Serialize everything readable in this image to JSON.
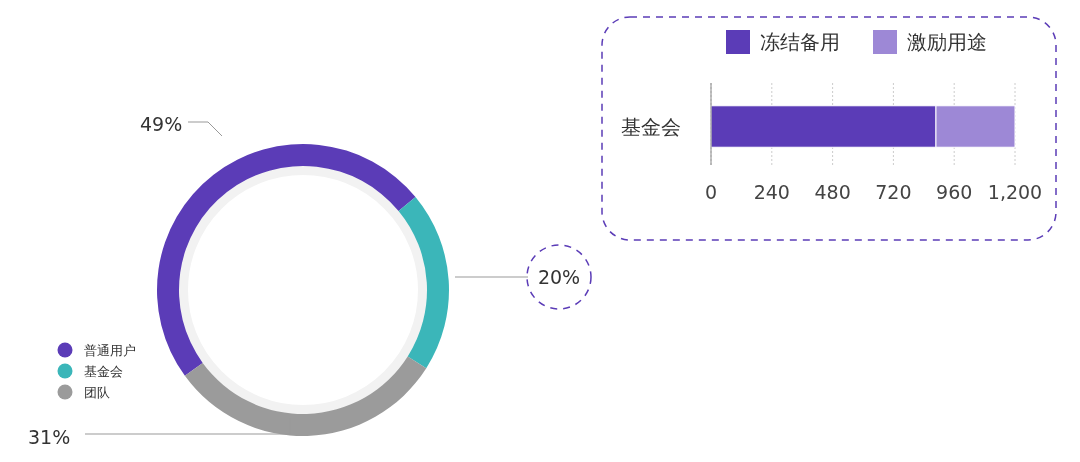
{
  "chart_data": [
    {
      "type": "donut",
      "categories": [
        "普通用户",
        "基金会",
        "团队"
      ],
      "values": [
        49,
        20,
        31
      ],
      "colors": [
        "#5b3cb7",
        "#3bb6b9",
        "#9b9b9b"
      ],
      "value_labels": [
        "49%",
        "20%",
        "31%"
      ],
      "legend": "bottom left"
    },
    {
      "type": "bar",
      "orientation": "horizontal",
      "stacked": true,
      "categories": [
        "基金会"
      ],
      "series": [
        {
          "name": "冻结备用",
          "color": "#5b3cb7",
          "values": [
            888
          ]
        },
        {
          "name": "激励用途",
          "color": "#9d88d6",
          "values": [
            312
          ]
        }
      ],
      "xlim": [
        0,
        1200
      ],
      "xticks": [
        0,
        240,
        480,
        720,
        960,
        {
          "value": 1200,
          "label": "1,200"
        }
      ],
      "grid": "x",
      "legend": "top"
    }
  ]
}
